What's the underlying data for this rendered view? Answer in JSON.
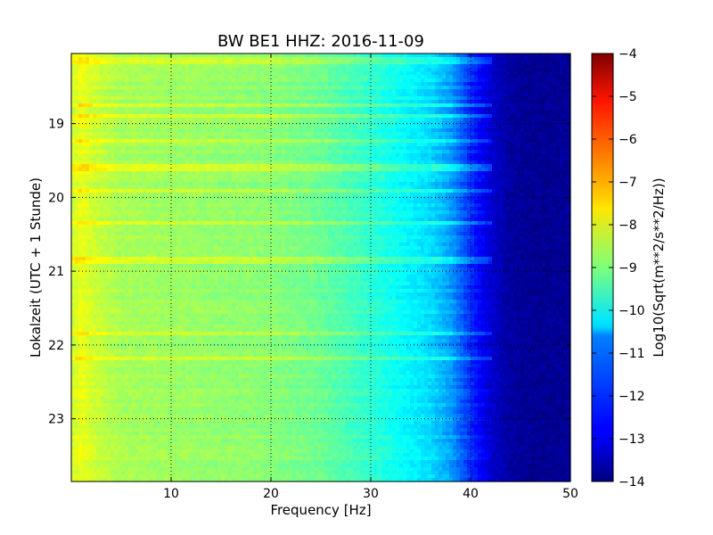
{
  "chart_data": {
    "type": "heatmap",
    "title": "BW BE1 HHZ: 2016-11-09",
    "xlabel": "Frequency [Hz]",
    "ylabel": "Lokalzeit (UTC + 1 Stunde)",
    "xlim": [
      0,
      50
    ],
    "ylim": [
      18.05,
      23.85
    ],
    "y_inverted": true,
    "x_ticks": [
      10,
      20,
      30,
      40,
      50
    ],
    "y_ticks": [
      19,
      20,
      21,
      22,
      23
    ],
    "grid": true,
    "colormap": "jet",
    "colorbar": {
      "label": "Log10(Sqrt(m**2/s**2/Hz))",
      "range": [
        -14,
        -4
      ],
      "ticks": [
        -4,
        -5,
        -6,
        -7,
        -8,
        -9,
        -10,
        -11,
        -12,
        -13,
        -14
      ]
    },
    "psd_profile": {
      "frequency_hz": [
        0,
        1,
        2,
        5,
        10,
        15,
        20,
        25,
        30,
        33,
        36,
        38,
        40,
        42,
        44,
        46,
        50
      ],
      "log10_amplitude": [
        -8.3,
        -7.9,
        -8.2,
        -8.6,
        -8.7,
        -8.8,
        -8.9,
        -9.2,
        -9.8,
        -10.2,
        -10.6,
        -11.2,
        -12.3,
        -13.2,
        -13.7,
        -13.8,
        -13.8
      ]
    },
    "horizontal_bands_hours": [
      18.15,
      18.75,
      18.9,
      19.25,
      19.6,
      19.9,
      20.35,
      20.85,
      21.85,
      22.2
    ]
  }
}
